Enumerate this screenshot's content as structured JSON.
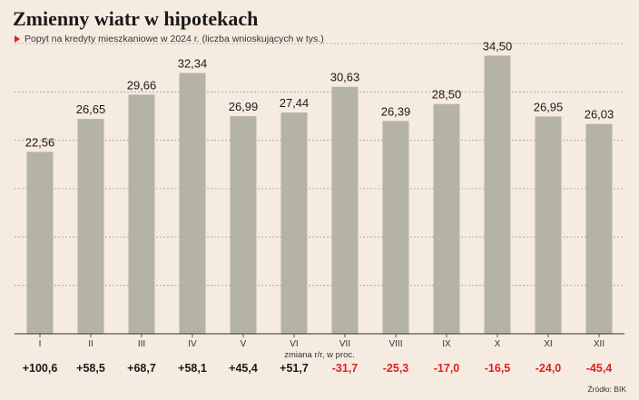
{
  "header": {
    "title": "Zmienny wiatr w hipotekach",
    "subtitle": "Popyt na kredyty mieszkaniowe w 2024 r. (liczba wnioskujących w tys.)"
  },
  "chart_data": {
    "type": "bar",
    "categories": [
      "I",
      "II",
      "III",
      "IV",
      "V",
      "VI",
      "VII",
      "VIII",
      "IX",
      "X",
      "XI",
      "XII"
    ],
    "values": [
      22.56,
      26.65,
      29.66,
      32.34,
      26.99,
      27.44,
      30.63,
      26.39,
      28.5,
      34.5,
      26.95,
      26.03
    ],
    "value_labels": [
      "22,56",
      "26,65",
      "29,66",
      "32,34",
      "26,99",
      "27,44",
      "30,63",
      "26,39",
      "28,50",
      "34,50",
      "26,95",
      "26,03"
    ],
    "ylim": [
      0,
      36
    ],
    "grid": true,
    "change_label": "zmiana r/r, w proc.",
    "changes": [
      100.6,
      58.5,
      68.7,
      58.1,
      45.4,
      51.7,
      -31.7,
      -25.3,
      -17.0,
      -16.5,
      -24.0,
      -45.4
    ],
    "change_labels": [
      "+100,6",
      "+58,5",
      "+68,7",
      "+58,1",
      "+45,4",
      "+51,7",
      "-31,7",
      "-25,3",
      "-17,0",
      "-16,5",
      "-24,0",
      "-45,4"
    ],
    "colors": {
      "bar": "#b5b2a6",
      "positive": "#1a1a1a",
      "negative": "#e02020",
      "grid": "#a8a093"
    }
  },
  "footer": {
    "source": "Źródło: BIK"
  }
}
